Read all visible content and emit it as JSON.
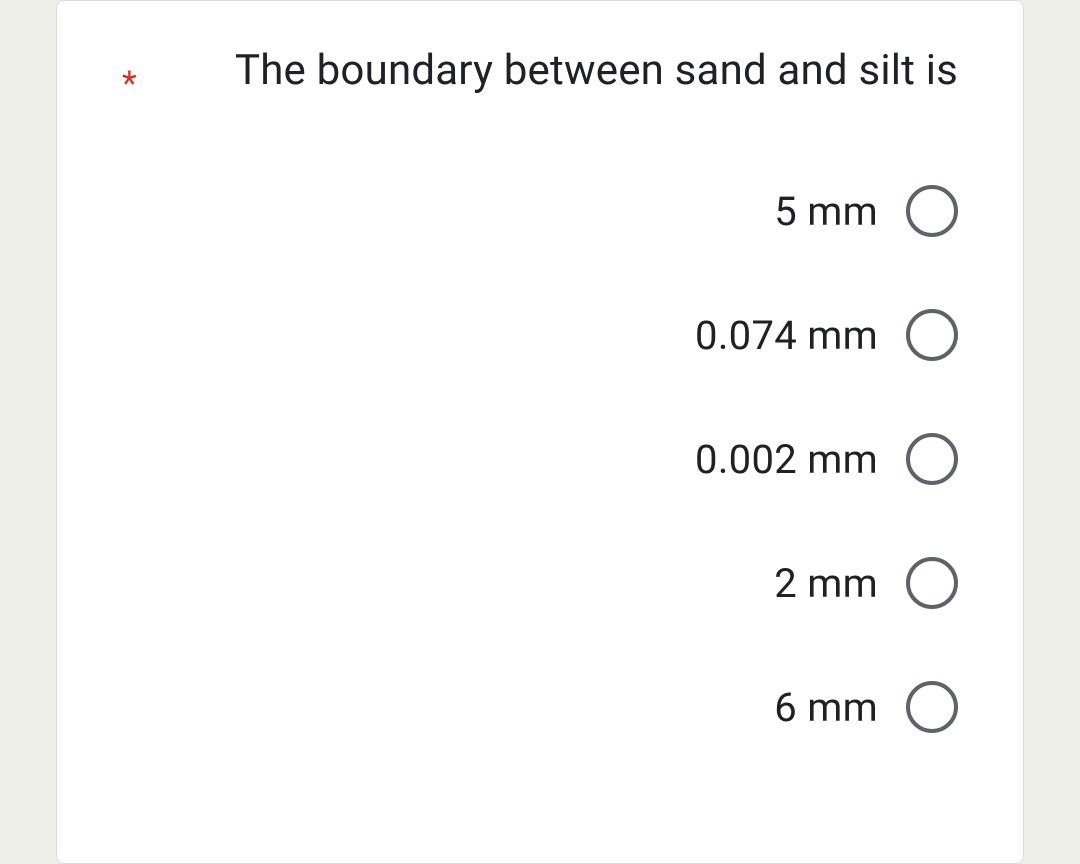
{
  "question": {
    "required": true,
    "asterisk": "*",
    "text": "The boundary  between  sand and silt is"
  },
  "options": [
    {
      "label": "5 mm",
      "selected": false
    },
    {
      "label": "0.074 mm",
      "selected": false
    },
    {
      "label": "0.002 mm",
      "selected": false
    },
    {
      "label": "2 mm",
      "selected": false
    },
    {
      "label": "6 mm",
      "selected": false
    }
  ],
  "colors": {
    "background": "#edeee7",
    "card_background": "#ffffff",
    "card_border": "#dadce0",
    "text": "#202124",
    "required": "#d93025",
    "radio_border": "#5f6368"
  }
}
